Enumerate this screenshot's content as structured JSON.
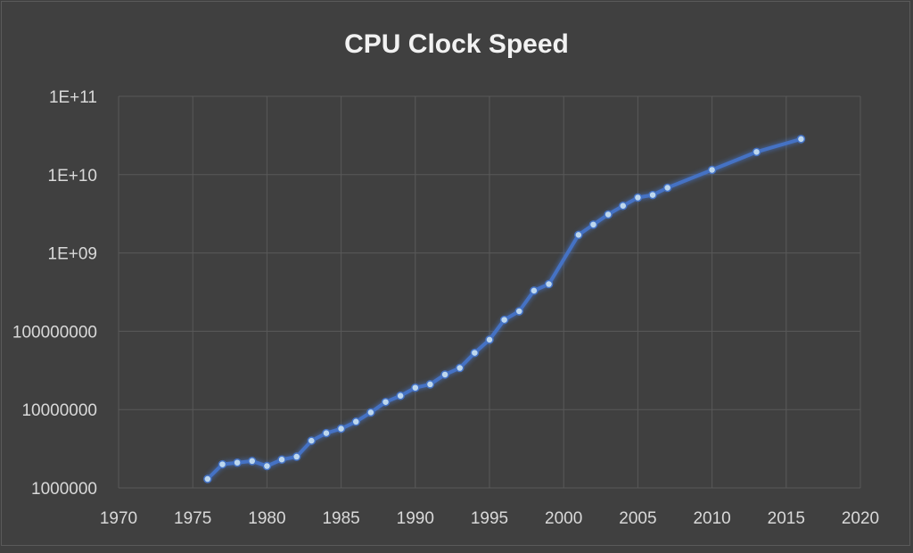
{
  "chart_data": {
    "type": "line",
    "title": "CPU Clock Speed",
    "xlabel": "",
    "ylabel": "",
    "y_scale": "log",
    "xlim": [
      1970,
      2020
    ],
    "ylim": [
      1000000,
      100000000000
    ],
    "x_ticks": [
      "1970",
      "1975",
      "1980",
      "1985",
      "1990",
      "1995",
      "2000",
      "2005",
      "2010",
      "2015",
      "2020"
    ],
    "y_ticks": [
      "1000000",
      "10000000",
      "100000000",
      "1E+09",
      "1E+10",
      "1E+11"
    ],
    "grid": true,
    "legend": "none",
    "colors": {
      "background": "#404040",
      "line": "#4472c4",
      "marker": "#bdd7ee",
      "grid": "#595959",
      "text": "#d9d9d9"
    },
    "series": [
      {
        "x": [
          1976,
          1977,
          1978,
          1979,
          1980,
          1981,
          1982,
          1983,
          1984,
          1985,
          1986,
          1987,
          1988,
          1989,
          1990,
          1991,
          1992,
          1993,
          1994,
          1995,
          1996,
          1997,
          1998,
          1999,
          2001,
          2002,
          2003,
          2004,
          2005,
          2006,
          2007,
          2010,
          2013,
          2016
        ],
        "y": [
          1300000,
          2000000,
          2100000,
          2200000,
          1900000,
          2300000,
          2500000,
          4000000,
          5000000,
          5700000,
          7000000,
          9200000,
          12500000,
          15000000,
          19000000,
          21000000,
          28000000,
          34000000,
          53000000,
          78000000,
          140000000,
          180000000,
          330000000,
          400000000,
          1700000000,
          2300000000,
          3100000000,
          4000000000,
          5100000000,
          5500000000,
          6800000000,
          11500000000,
          19500000000,
          28500000000
        ]
      }
    ]
  }
}
